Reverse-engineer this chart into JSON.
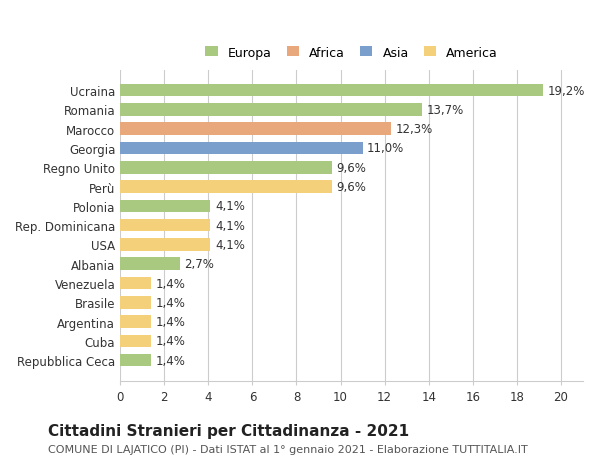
{
  "categories": [
    "Repubblica Ceca",
    "Cuba",
    "Argentina",
    "Brasile",
    "Venezuela",
    "Albania",
    "USA",
    "Rep. Dominicana",
    "Polonia",
    "Perù",
    "Regno Unito",
    "Georgia",
    "Marocco",
    "Romania",
    "Ucraina"
  ],
  "values": [
    1.4,
    1.4,
    1.4,
    1.4,
    1.4,
    2.7,
    4.1,
    4.1,
    4.1,
    9.6,
    9.6,
    11.0,
    12.3,
    13.7,
    19.2
  ],
  "continents": [
    "Europa",
    "America",
    "America",
    "America",
    "America",
    "Europa",
    "America",
    "America",
    "Europa",
    "America",
    "Europa",
    "Asia",
    "Africa",
    "Europa",
    "Europa"
  ],
  "labels": [
    "1,4%",
    "1,4%",
    "1,4%",
    "1,4%",
    "1,4%",
    "2,7%",
    "4,1%",
    "4,1%",
    "4,1%",
    "9,6%",
    "9,6%",
    "11,0%",
    "12,3%",
    "13,7%",
    "19,2%"
  ],
  "continent_colors": {
    "Europa": "#a8c97f",
    "Africa": "#e8a87c",
    "Asia": "#7b9fcc",
    "America": "#f5d07a"
  },
  "legend_order": [
    "Europa",
    "Africa",
    "Asia",
    "America"
  ],
  "xlim": [
    0,
    21
  ],
  "xticks": [
    0,
    2,
    4,
    6,
    8,
    10,
    12,
    14,
    16,
    18,
    20
  ],
  "title": "Cittadini Stranieri per Cittadinanza - 2021",
  "subtitle": "COMUNE DI LAJATICO (PI) - Dati ISTAT al 1° gennaio 2021 - Elaborazione TUTTITALIA.IT",
  "background_color": "#ffffff",
  "bar_height": 0.65,
  "label_fontsize": 8.5,
  "ytick_fontsize": 8.5,
  "xtick_fontsize": 8.5,
  "title_fontsize": 11,
  "subtitle_fontsize": 8,
  "legend_fontsize": 9,
  "grid_color": "#cccccc"
}
